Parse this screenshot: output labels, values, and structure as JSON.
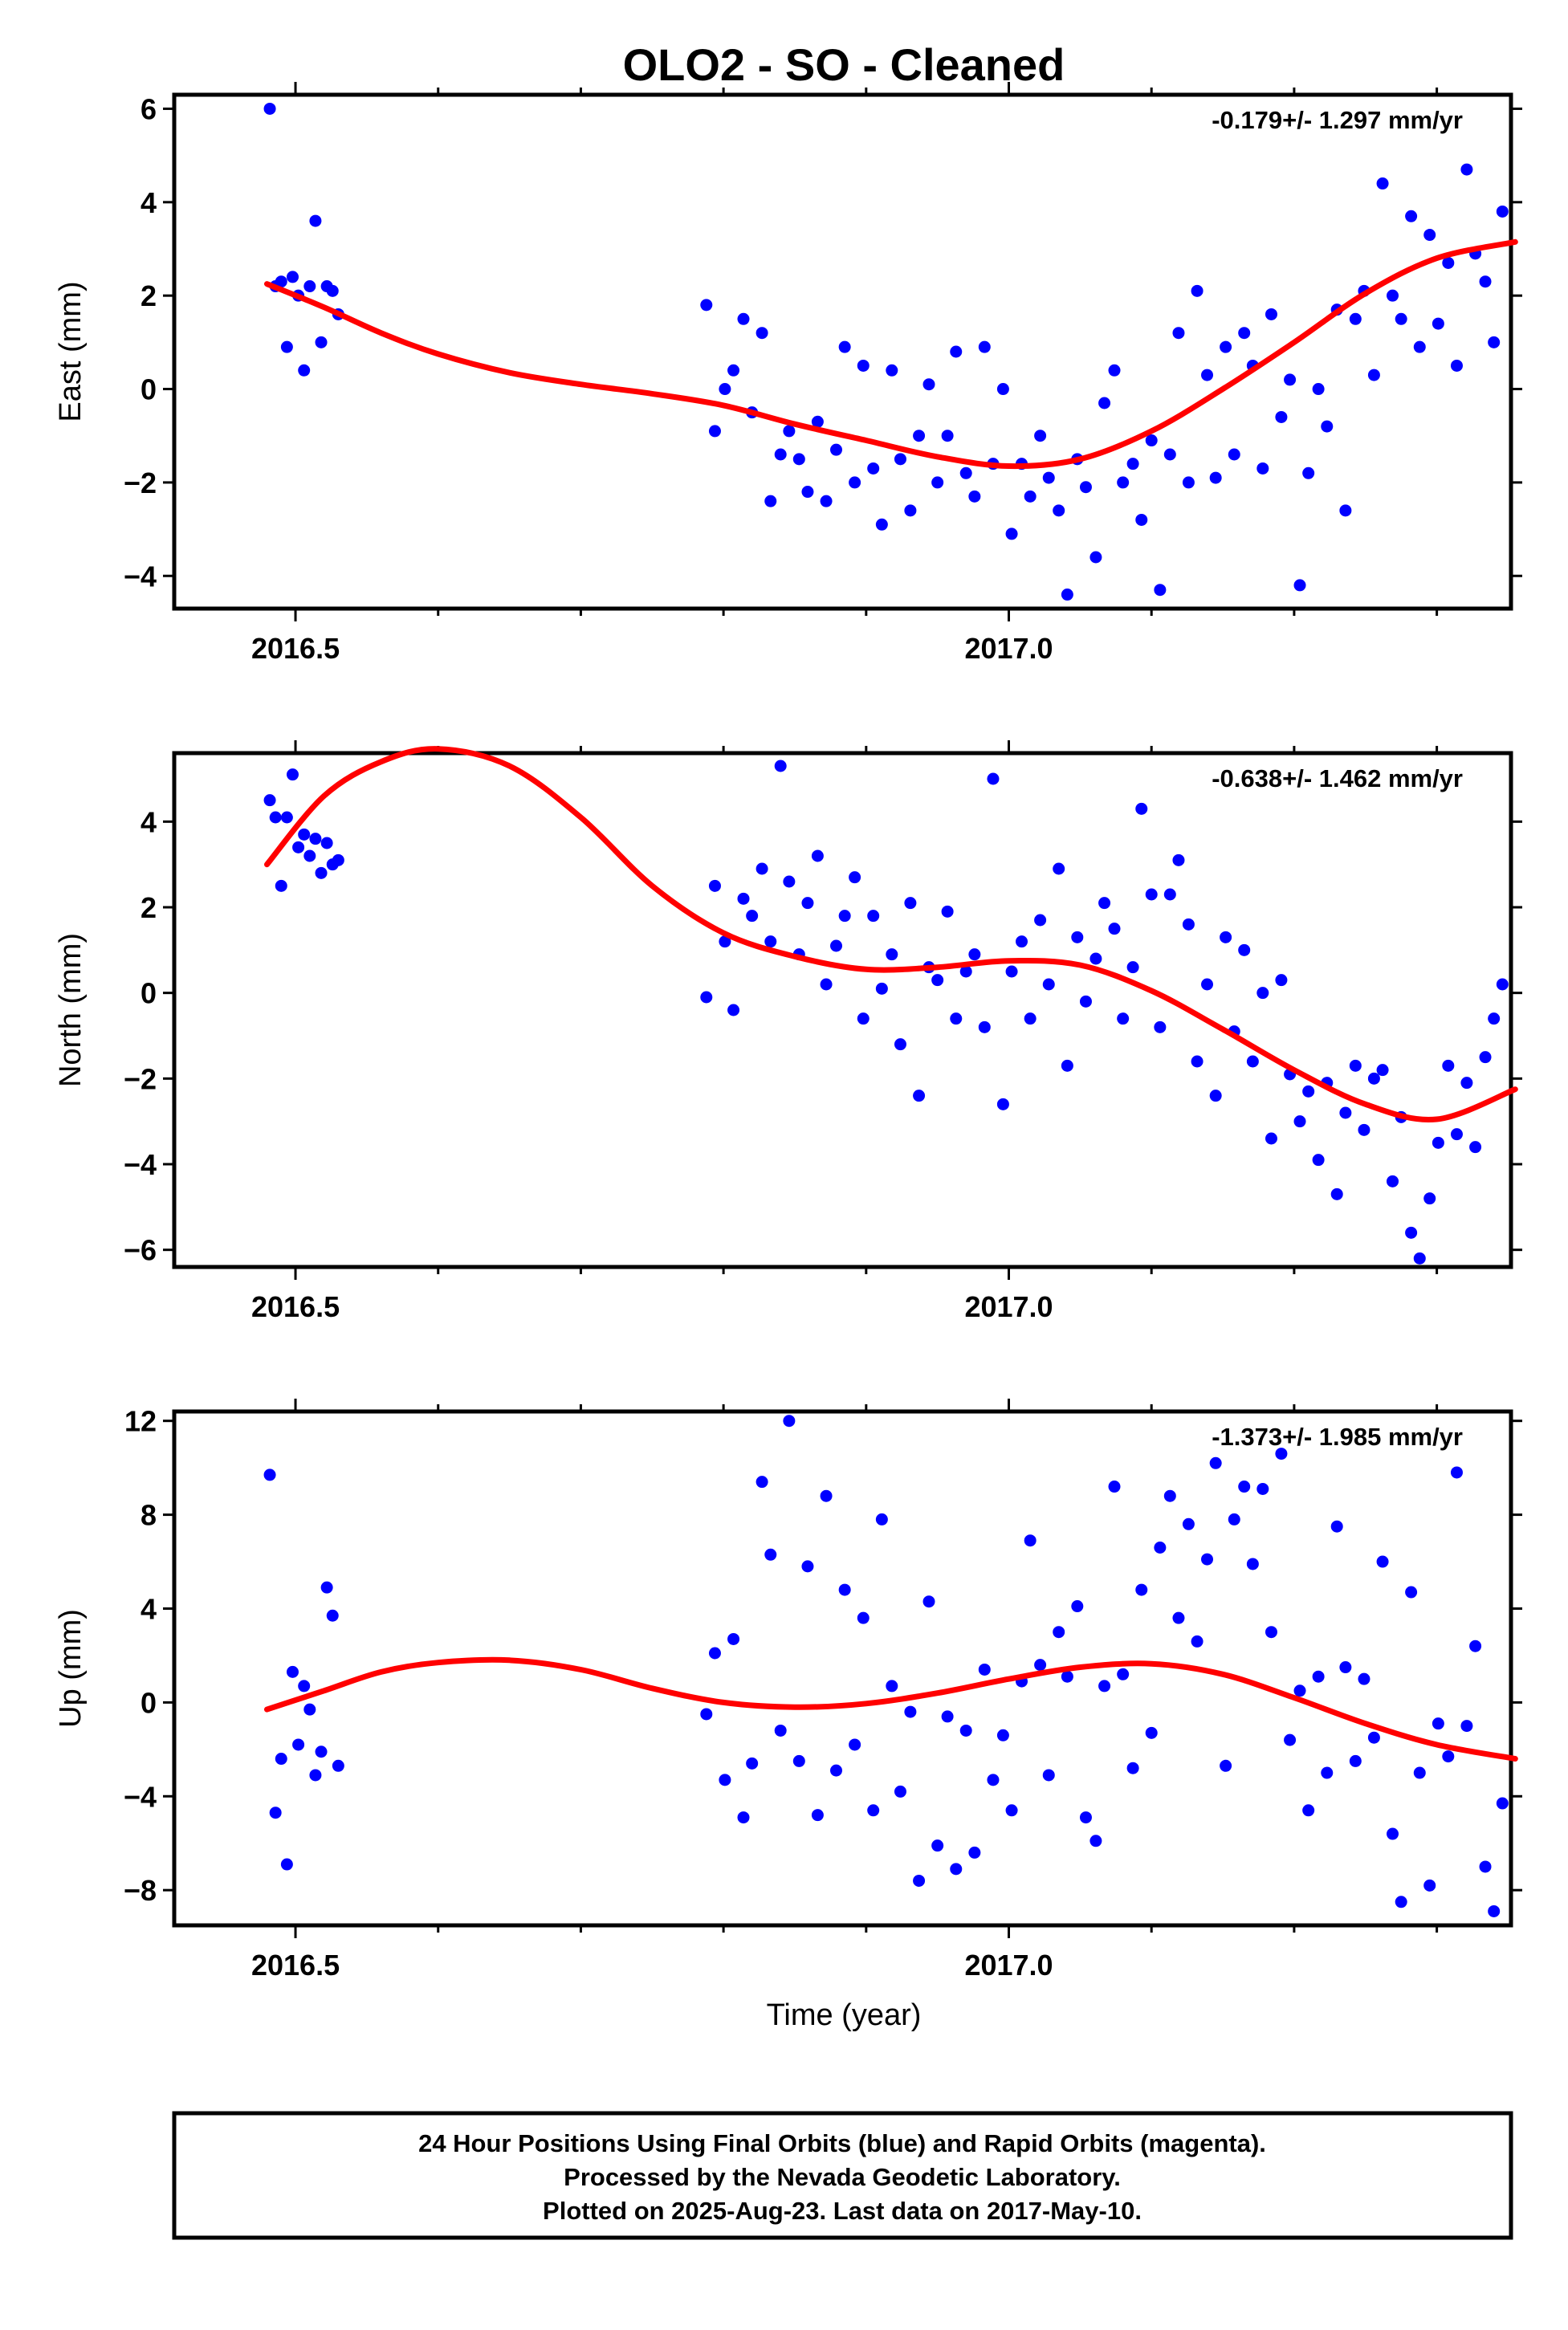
{
  "title": "OLO2  - SO - Cleaned",
  "colors": {
    "points": "#0000ff",
    "fit": "#ff0000",
    "frame": "#000000"
  },
  "chart_data": [
    {
      "type": "scatter",
      "ylabel": "East (mm)",
      "rate_label": "-0.179+/- 1.297 mm/yr",
      "xlim": [
        2016.415,
        2017.352
      ],
      "ylim": [
        -4.7,
        6.3
      ],
      "yticks": [
        6,
        4,
        2,
        0,
        -2,
        -4
      ],
      "xticks": [
        2016.5,
        2017.0
      ],
      "xtick_labels": [
        "2016.5",
        "2017.0"
      ],
      "fit": {
        "x": [
          2016.48,
          2016.52,
          2016.56,
          2016.6,
          2016.65,
          2016.7,
          2016.75,
          2016.8,
          2016.85,
          2016.9,
          2016.95,
          2017.0,
          2017.05,
          2017.1,
          2017.15,
          2017.2,
          2017.25,
          2017.3,
          2017.355
        ],
        "y": [
          2.25,
          1.75,
          1.2,
          0.75,
          0.35,
          0.1,
          -0.1,
          -0.35,
          -0.75,
          -1.1,
          -1.45,
          -1.65,
          -1.5,
          -0.9,
          0.0,
          1.0,
          2.05,
          2.8,
          3.15
        ]
      },
      "x": [
        2016.482,
        2016.486,
        2016.49,
        2016.494,
        2016.498,
        2016.502,
        2016.506,
        2016.51,
        2016.514,
        2016.518,
        2016.522,
        2016.526,
        2016.53,
        2016.788,
        2016.794,
        2016.801,
        2016.807,
        2016.814,
        2016.82,
        2016.827,
        2016.833,
        2016.84,
        2016.846,
        2016.853,
        2016.859,
        2016.866,
        2016.872,
        2016.879,
        2016.885,
        2016.892,
        2016.898,
        2016.905,
        2016.911,
        2016.918,
        2016.924,
        2016.931,
        2016.937,
        2016.944,
        2016.95,
        2016.957,
        2016.963,
        2016.97,
        2016.976,
        2016.983,
        2016.989,
        2016.996,
        2017.002,
        2017.009,
        2017.015,
        2017.022,
        2017.028,
        2017.035,
        2017.041,
        2017.048,
        2017.054,
        2017.061,
        2017.067,
        2017.074,
        2017.08,
        2017.087,
        2017.093,
        2017.1,
        2017.106,
        2017.113,
        2017.119,
        2017.126,
        2017.132,
        2017.139,
        2017.145,
        2017.152,
        2017.158,
        2017.165,
        2017.171,
        2017.178,
        2017.184,
        2017.191,
        2017.197,
        2017.204,
        2017.21,
        2017.217,
        2017.223,
        2017.23,
        2017.236,
        2017.243,
        2017.249,
        2017.256,
        2017.262,
        2017.269,
        2017.275,
        2017.282,
        2017.288,
        2017.295,
        2017.301,
        2017.308,
        2017.314,
        2017.321,
        2017.327,
        2017.334,
        2017.34,
        2017.346
      ],
      "y": [
        6.0,
        2.2,
        2.3,
        0.9,
        2.4,
        2.0,
        0.4,
        2.2,
        3.6,
        1.0,
        2.2,
        2.1,
        1.6,
        1.8,
        -0.9,
        0.0,
        0.4,
        1.5,
        -0.5,
        1.2,
        -2.4,
        -1.4,
        -0.9,
        -1.5,
        -2.2,
        -0.7,
        -2.4,
        -1.3,
        0.9,
        -2.0,
        0.5,
        -1.7,
        -2.9,
        0.4,
        -1.5,
        -2.6,
        -1.0,
        0.1,
        -2.0,
        -1.0,
        0.8,
        -1.8,
        -2.3,
        0.9,
        -1.6,
        0.0,
        -3.1,
        -1.6,
        -2.3,
        -1.0,
        -1.9,
        -2.6,
        -4.4,
        -1.5,
        -2.1,
        -3.6,
        -0.3,
        0.4,
        -2.0,
        -1.6,
        -2.8,
        -1.1,
        -4.3,
        -1.4,
        1.2,
        -2.0,
        2.1,
        0.3,
        -1.9,
        0.9,
        -1.4,
        1.2,
        0.5,
        -1.7,
        1.6,
        -0.6,
        0.2,
        -4.2,
        -1.8,
        0.0,
        -0.8,
        1.7,
        -2.6,
        1.5,
        2.1,
        0.3,
        4.4,
        2.0,
        1.5,
        3.7,
        0.9,
        3.3,
        1.4,
        2.7,
        0.5,
        4.7,
        2.9,
        2.3,
        1.0,
        3.8
      ]
    },
    {
      "type": "scatter",
      "ylabel": "North (mm)",
      "rate_label": "-0.638+/- 1.462 mm/yr",
      "xlim": [
        2016.415,
        2017.352
      ],
      "ylim": [
        -6.4,
        5.6
      ],
      "yticks": [
        4,
        2,
        0,
        -2,
        -4,
        -6
      ],
      "xticks": [
        2016.5,
        2017.0
      ],
      "xtick_labels": [
        "2016.5",
        "2017.0"
      ],
      "fit": {
        "x": [
          2016.48,
          2016.52,
          2016.56,
          2016.6,
          2016.65,
          2016.7,
          2016.75,
          2016.8,
          2016.85,
          2016.9,
          2016.95,
          2017.0,
          2017.05,
          2017.1,
          2017.15,
          2017.2,
          2017.25,
          2017.3,
          2017.355
        ],
        "y": [
          3.0,
          4.6,
          5.4,
          5.7,
          5.3,
          4.1,
          2.5,
          1.4,
          0.85,
          0.55,
          0.6,
          0.75,
          0.65,
          0.05,
          -0.85,
          -1.8,
          -2.6,
          -2.95,
          -2.25
        ]
      },
      "x": [
        2016.482,
        2016.486,
        2016.49,
        2016.494,
        2016.498,
        2016.502,
        2016.506,
        2016.51,
        2016.514,
        2016.518,
        2016.522,
        2016.526,
        2016.53,
        2016.788,
        2016.794,
        2016.801,
        2016.807,
        2016.814,
        2016.82,
        2016.827,
        2016.833,
        2016.84,
        2016.846,
        2016.853,
        2016.859,
        2016.866,
        2016.872,
        2016.879,
        2016.885,
        2016.892,
        2016.898,
        2016.905,
        2016.911,
        2016.918,
        2016.924,
        2016.931,
        2016.937,
        2016.944,
        2016.95,
        2016.957,
        2016.963,
        2016.97,
        2016.976,
        2016.983,
        2016.989,
        2016.996,
        2017.002,
        2017.009,
        2017.015,
        2017.022,
        2017.028,
        2017.035,
        2017.041,
        2017.048,
        2017.054,
        2017.061,
        2017.067,
        2017.074,
        2017.08,
        2017.087,
        2017.093,
        2017.1,
        2017.106,
        2017.113,
        2017.119,
        2017.126,
        2017.132,
        2017.139,
        2017.145,
        2017.152,
        2017.158,
        2017.165,
        2017.171,
        2017.178,
        2017.184,
        2017.191,
        2017.197,
        2017.204,
        2017.21,
        2017.217,
        2017.223,
        2017.23,
        2017.236,
        2017.243,
        2017.249,
        2017.256,
        2017.262,
        2017.269,
        2017.275,
        2017.282,
        2017.288,
        2017.295,
        2017.301,
        2017.308,
        2017.314,
        2017.321,
        2017.327,
        2017.334,
        2017.34,
        2017.346
      ],
      "y": [
        4.5,
        4.1,
        2.5,
        4.1,
        5.1,
        3.4,
        3.7,
        3.2,
        3.6,
        2.8,
        3.5,
        3.0,
        3.1,
        -0.1,
        2.5,
        1.2,
        -0.4,
        2.2,
        1.8,
        2.9,
        1.2,
        5.3,
        2.6,
        0.9,
        2.1,
        3.2,
        0.2,
        1.1,
        1.8,
        2.7,
        -0.6,
        1.8,
        0.1,
        0.9,
        -1.2,
        2.1,
        -2.4,
        0.6,
        0.3,
        1.9,
        -0.6,
        0.5,
        0.9,
        -0.8,
        5.0,
        -2.6,
        0.5,
        1.2,
        -0.6,
        1.7,
        0.2,
        2.9,
        -1.7,
        1.3,
        -0.2,
        0.8,
        2.1,
        1.5,
        -0.6,
        0.6,
        4.3,
        2.3,
        -0.8,
        2.3,
        3.1,
        1.6,
        -1.6,
        0.2,
        -2.4,
        1.3,
        -0.9,
        1.0,
        -1.6,
        0.0,
        -3.4,
        0.3,
        -1.9,
        -3.0,
        -2.3,
        -3.9,
        -2.1,
        -4.7,
        -2.8,
        -1.7,
        -3.2,
        -2.0,
        -1.8,
        -4.4,
        -2.9,
        -5.6,
        -6.2,
        -4.8,
        -3.5,
        -1.7,
        -3.3,
        -2.1,
        -3.6,
        -1.5,
        -0.6,
        0.2
      ]
    },
    {
      "type": "scatter",
      "ylabel": "Up (mm)",
      "xlabel": "Time (year)",
      "rate_label": "-1.373+/- 1.985 mm/yr",
      "xlim": [
        2016.415,
        2017.352
      ],
      "ylim": [
        -9.5,
        12.4
      ],
      "yticks": [
        12,
        8,
        4,
        0,
        -4,
        -8
      ],
      "xticks": [
        2016.5,
        2017.0
      ],
      "xtick_labels": [
        "2016.5",
        "2017.0"
      ],
      "fit": {
        "x": [
          2016.48,
          2016.52,
          2016.56,
          2016.6,
          2016.65,
          2016.7,
          2016.75,
          2016.8,
          2016.85,
          2016.9,
          2016.95,
          2017.0,
          2017.05,
          2017.1,
          2017.15,
          2017.2,
          2017.25,
          2017.3,
          2017.355
        ],
        "y": [
          -0.3,
          0.5,
          1.3,
          1.7,
          1.8,
          1.4,
          0.6,
          0.0,
          -0.2,
          -0.05,
          0.4,
          1.0,
          1.5,
          1.65,
          1.2,
          0.2,
          -0.9,
          -1.8,
          -2.4
        ]
      },
      "x": [
        2016.482,
        2016.486,
        2016.49,
        2016.494,
        2016.498,
        2016.502,
        2016.506,
        2016.51,
        2016.514,
        2016.518,
        2016.522,
        2016.526,
        2016.53,
        2016.788,
        2016.794,
        2016.801,
        2016.807,
        2016.814,
        2016.82,
        2016.827,
        2016.833,
        2016.84,
        2016.846,
        2016.853,
        2016.859,
        2016.866,
        2016.872,
        2016.879,
        2016.885,
        2016.892,
        2016.898,
        2016.905,
        2016.911,
        2016.918,
        2016.924,
        2016.931,
        2016.937,
        2016.944,
        2016.95,
        2016.957,
        2016.963,
        2016.97,
        2016.976,
        2016.983,
        2016.989,
        2016.996,
        2017.002,
        2017.009,
        2017.015,
        2017.022,
        2017.028,
        2017.035,
        2017.041,
        2017.048,
        2017.054,
        2017.061,
        2017.067,
        2017.074,
        2017.08,
        2017.087,
        2017.093,
        2017.1,
        2017.106,
        2017.113,
        2017.119,
        2017.126,
        2017.132,
        2017.139,
        2017.145,
        2017.152,
        2017.158,
        2017.165,
        2017.171,
        2017.178,
        2017.184,
        2017.191,
        2017.197,
        2017.204,
        2017.21,
        2017.217,
        2017.223,
        2017.23,
        2017.236,
        2017.243,
        2017.249,
        2017.256,
        2017.262,
        2017.269,
        2017.275,
        2017.282,
        2017.288,
        2017.295,
        2017.301,
        2017.308,
        2017.314,
        2017.321,
        2017.327,
        2017.334,
        2017.34,
        2017.346
      ],
      "y": [
        9.7,
        -4.7,
        -2.4,
        -6.9,
        1.3,
        -1.8,
        0.7,
        -0.3,
        -3.1,
        -2.1,
        4.9,
        3.7,
        -2.7,
        -0.5,
        2.1,
        -3.3,
        2.7,
        -4.9,
        -2.6,
        9.4,
        6.3,
        -1.2,
        12.0,
        -2.5,
        5.8,
        -4.8,
        8.8,
        -2.9,
        4.8,
        -1.8,
        3.6,
        -4.6,
        7.8,
        0.7,
        -3.8,
        -0.4,
        -7.6,
        4.3,
        -6.1,
        -0.6,
        -7.1,
        -1.2,
        -6.4,
        1.4,
        -3.3,
        -1.4,
        -4.6,
        0.9,
        6.9,
        1.6,
        -3.1,
        3.0,
        1.1,
        4.1,
        -4.9,
        -5.9,
        0.7,
        9.2,
        1.2,
        -2.8,
        4.8,
        -1.3,
        6.6,
        8.8,
        3.6,
        7.6,
        2.6,
        6.1,
        10.2,
        -2.7,
        7.8,
        9.2,
        5.9,
        9.1,
        3.0,
        10.6,
        -1.6,
        0.5,
        -4.6,
        1.1,
        -3.0,
        7.5,
        1.5,
        -2.5,
        1.0,
        -1.5,
        6.0,
        -5.6,
        -8.5,
        4.7,
        -3.0,
        -7.8,
        -0.9,
        -2.3,
        9.8,
        -1.0,
        2.4,
        -7.0,
        -8.9,
        -4.3
      ]
    }
  ],
  "footer": {
    "line1": "24 Hour Positions Using Final Orbits (blue) and Rapid Orbits (magenta).",
    "line2": "Processed by the Nevada Geodetic Laboratory.",
    "line3": "Plotted on 2025-Aug-23. Last data on 2017-May-10."
  }
}
